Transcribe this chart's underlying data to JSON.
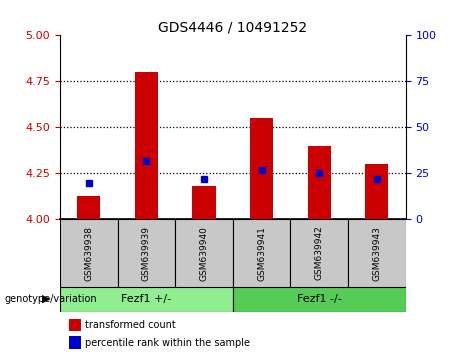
{
  "title": "GDS4446 / 10491252",
  "samples": [
    "GSM639938",
    "GSM639939",
    "GSM639940",
    "GSM639941",
    "GSM639942",
    "GSM639943"
  ],
  "red_values": [
    4.13,
    4.8,
    4.18,
    4.55,
    4.4,
    4.3
  ],
  "blue_values": [
    4.2,
    4.32,
    4.22,
    4.27,
    4.25,
    4.22
  ],
  "ylim_left": [
    4.0,
    5.0
  ],
  "ylim_right": [
    0,
    100
  ],
  "yticks_left": [
    4.0,
    4.25,
    4.5,
    4.75,
    5.0
  ],
  "yticks_right": [
    0,
    25,
    50,
    75,
    100
  ],
  "group_labels": [
    "Fezf1 +/-",
    "Fezf1 -/-"
  ],
  "group_colors": [
    "#90EE90",
    "#55CC55"
  ],
  "group_ranges": [
    [
      0,
      2
    ],
    [
      3,
      5
    ]
  ],
  "genotype_label": "genotype/variation",
  "legend_items": [
    {
      "label": "transformed count",
      "color": "#CC0000"
    },
    {
      "label": "percentile rank within the sample",
      "color": "#0000CC"
    }
  ],
  "bar_width": 0.4,
  "red_color": "#CC0000",
  "blue_color": "#0000CC",
  "left_tick_color": "#CC0000",
  "right_tick_color": "#0000CC",
  "sample_box_color": "#C8C8C8",
  "dotted_yvals": [
    4.25,
    4.5,
    4.75
  ]
}
